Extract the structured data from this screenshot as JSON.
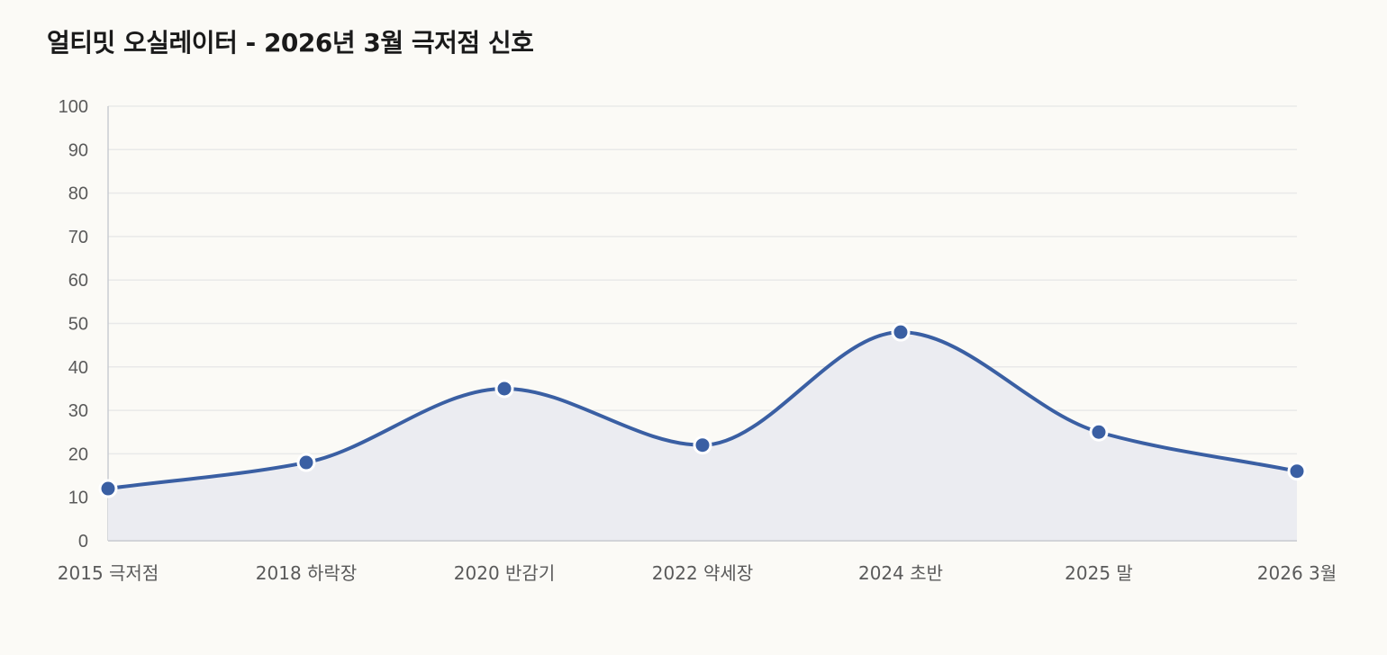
{
  "chart": {
    "title": "얼티밋 오실레이터 - 2026년 3월 극저점 신호"
  },
  "colors": {
    "background": "#fbfaf6",
    "line": "#3a5fa3",
    "area_fill": "#ebecf1",
    "grid": "#e9e9e9",
    "axis": "#c9ccd2",
    "point_stroke": "#ffffff"
  },
  "chart_data": {
    "type": "area",
    "title": "얼티밋 오실레이터 - 2026년 3월 극저점 신호",
    "xlabel": "",
    "ylabel": "",
    "categories": [
      "2015 극저점",
      "2018 하락장",
      "2020 반감기",
      "2022 약세장",
      "2024 초반",
      "2025 말",
      "2026 3월"
    ],
    "series": [
      {
        "values": [
          12,
          18,
          35,
          22,
          48,
          25,
          16
        ]
      }
    ],
    "ylim": [
      0,
      100
    ],
    "yticks": [
      0,
      10,
      20,
      30,
      40,
      50,
      60,
      70,
      80,
      90,
      100
    ],
    "grid": true,
    "legend": "none",
    "smooth": true
  }
}
